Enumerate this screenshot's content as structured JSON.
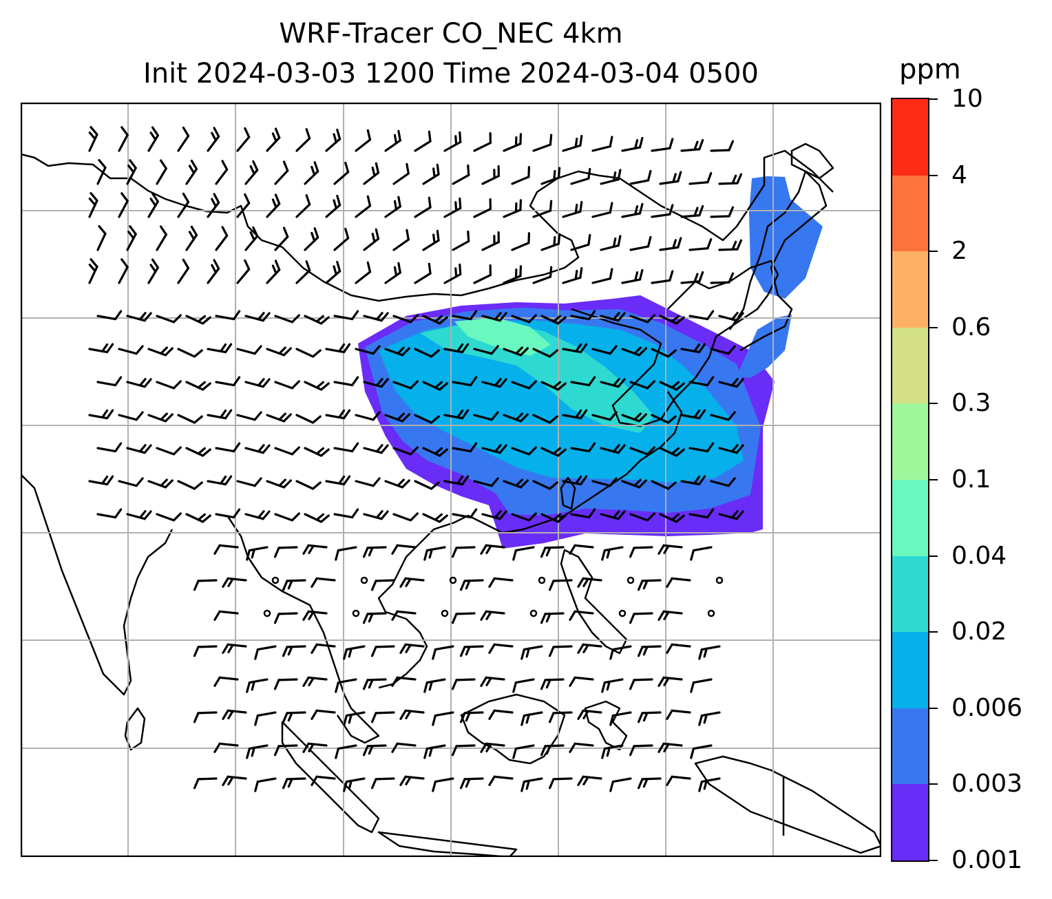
{
  "title": {
    "line1": "WRF-Tracer CO_NEC 4km",
    "line2": "Init 2024-03-03 1200 Time 2024-03-04 0500"
  },
  "colorbar": {
    "unit": "ppm",
    "levels": [
      "0.001",
      "0.003",
      "0.006",
      "0.02",
      "0.04",
      "0.1",
      "0.3",
      "0.6",
      "2",
      "4",
      "10"
    ],
    "colors": [
      "#6a2cf7",
      "#3778f0",
      "#06b0ea",
      "#2ed9d1",
      "#69f8bf",
      "#9ef79a",
      "#d3e085",
      "#feb067",
      "#fe723d",
      "#fe2b16"
    ]
  },
  "map": {
    "gridlines": true,
    "wind_barbs": true,
    "plume_colors": {
      "outer": "#6a2cf7",
      "mid": "#3778f0",
      "inner": "#06b0ea",
      "core": "#2ed9d1",
      "peak": "#69f8bf"
    }
  }
}
